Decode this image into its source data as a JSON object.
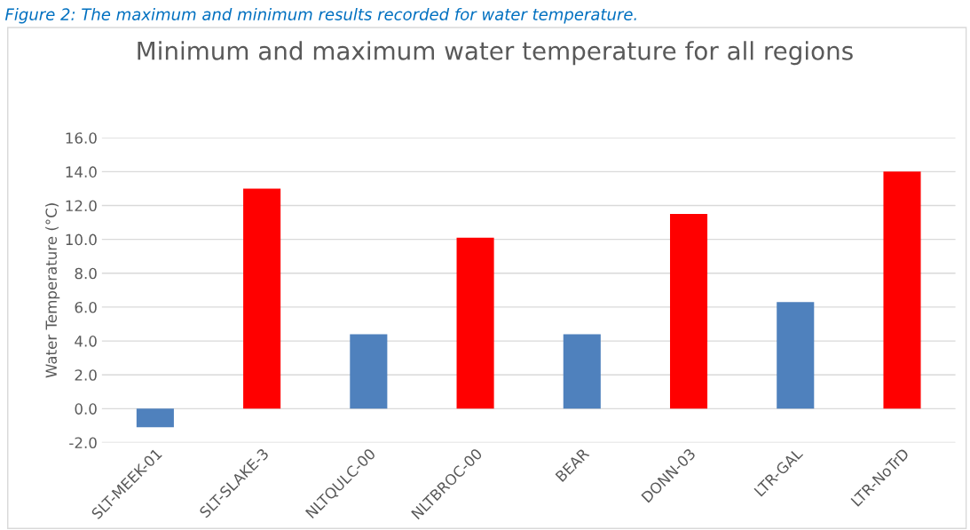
{
  "chart_data": {
    "type": "bar",
    "title": "Minimum and maximum water temperature for all regions",
    "ylabel": "Water Temperature (°C)",
    "annotations": [
      "Figure 2: The maximum and minimum results recorded for water temperature."
    ],
    "categories": [
      "SLT-MEEK-01",
      "SLT-SLAKE-3",
      "NLTQULC-00",
      "NLTBROC-00",
      "BEAR",
      "DONN-03",
      "LTR-GAL",
      "LTR-NoTrD"
    ],
    "values": [
      -1.1,
      13.0,
      4.4,
      10.1,
      4.4,
      11.5,
      6.3,
      14.0
    ],
    "colors": [
      "#4f81bd",
      "#ff0000",
      "#4f81bd",
      "#ff0000",
      "#4f81bd",
      "#ff0000",
      "#4f81bd",
      "#ff0000"
    ],
    "ylim": [
      -2,
      16
    ],
    "yticks": [
      {
        "value": -2,
        "label": "-2.0"
      },
      {
        "value": 0,
        "label": "0.0"
      },
      {
        "value": 2,
        "label": "2.0"
      },
      {
        "value": 4,
        "label": "4.0"
      },
      {
        "value": 6,
        "label": "6.0"
      },
      {
        "value": 8,
        "label": "8.0"
      },
      {
        "value": 10,
        "label": "10.0"
      },
      {
        "value": 12,
        "label": "12.0"
      },
      {
        "value": 14,
        "label": "14.0"
      },
      {
        "value": 16,
        "label": "16.0"
      }
    ],
    "grid": "y",
    "legend": false
  }
}
